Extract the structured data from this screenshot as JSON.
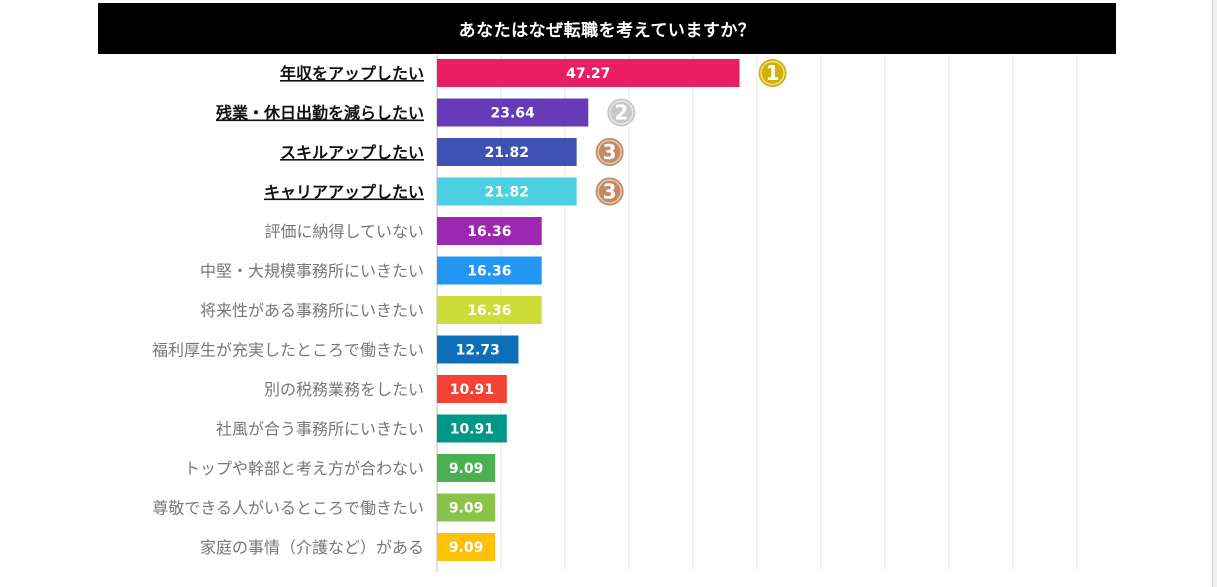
{
  "chart_data": {
    "type": "bar",
    "orientation": "horizontal",
    "title": "あなたはなぜ転職を考えていますか？",
    "categories": [
      "年収をアップしたい",
      "残業・休日出勤を減らしたい",
      "スキルアップしたい",
      "キャリアアップしたい",
      "評価に納得していない",
      "中堅・大規模事務所にいきたい",
      "将来性がある事務所にいきたい",
      "福利厚生が充実したところで働きたい",
      "別の税務業務をしたい",
      "社風が合う事務所にいきたい",
      "トップや幹部と考え方が合わない",
      "尊敬できる人がいるところで働きたい",
      "家庭の事情（介護など）がある"
    ],
    "values": [
      47.27,
      23.64,
      21.82,
      21.82,
      16.36,
      16.36,
      16.36,
      12.73,
      10.91,
      10.91,
      9.09,
      9.09,
      9.09
    ],
    "value_labels": [
      "47.27",
      "23.64",
      "21.82",
      "21.82",
      "16.36",
      "16.36",
      "16.36",
      "12.73",
      "10.91",
      "10.91",
      "9.09",
      "9.09",
      "9.09"
    ],
    "bar_colors": [
      "#e91e63",
      "#673ab7",
      "#3f51b5",
      "#4dd0e1",
      "#9c27b0",
      "#2196f3",
      "#cddc39",
      "#0d6fb8",
      "#f44336",
      "#009688",
      "#4caf50",
      "#8bc34a",
      "#ffc107"
    ],
    "highlighted": [
      true,
      true,
      true,
      true,
      false,
      false,
      false,
      false,
      false,
      false,
      false,
      false,
      false
    ],
    "ranks": [
      {
        "index": 0,
        "label": "1",
        "color": "#d4b106"
      },
      {
        "index": 1,
        "label": "2",
        "color": "#c8c8c8"
      },
      {
        "index": 2,
        "label": "3",
        "color": "#c48a62"
      },
      {
        "index": 3,
        "label": "3",
        "color": "#c48a62"
      }
    ],
    "xlim": [
      0,
      100
    ],
    "grid": true,
    "legend": "none"
  }
}
